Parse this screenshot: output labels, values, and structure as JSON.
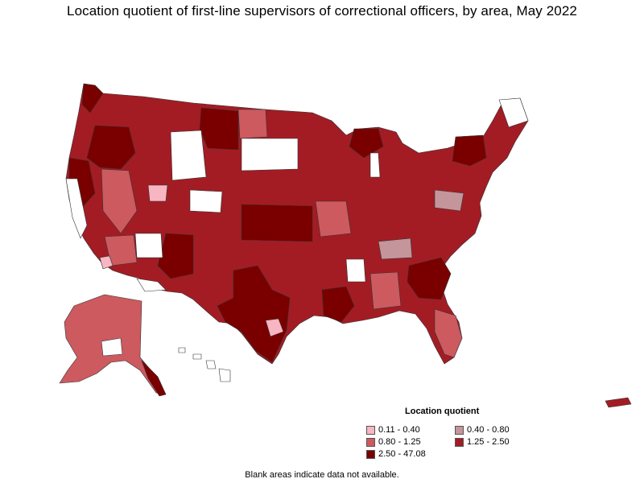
{
  "title": "Location quotient of first-line supervisors of correctional officers, by area, May 2022",
  "legend": {
    "title": "Location quotient",
    "items": [
      {
        "label": "0.11 - 0.40",
        "color": "#f7b6c2"
      },
      {
        "label": "0.40 - 0.80",
        "color": "#c4959b"
      },
      {
        "label": "0.80 - 1.25",
        "color": "#cc5a5f"
      },
      {
        "label": "1.25 - 2.50",
        "color": "#a31c24"
      },
      {
        "label": "2.50 - 47.08",
        "color": "#7a0000"
      }
    ]
  },
  "footnote": "Blank areas indicate data not available."
}
